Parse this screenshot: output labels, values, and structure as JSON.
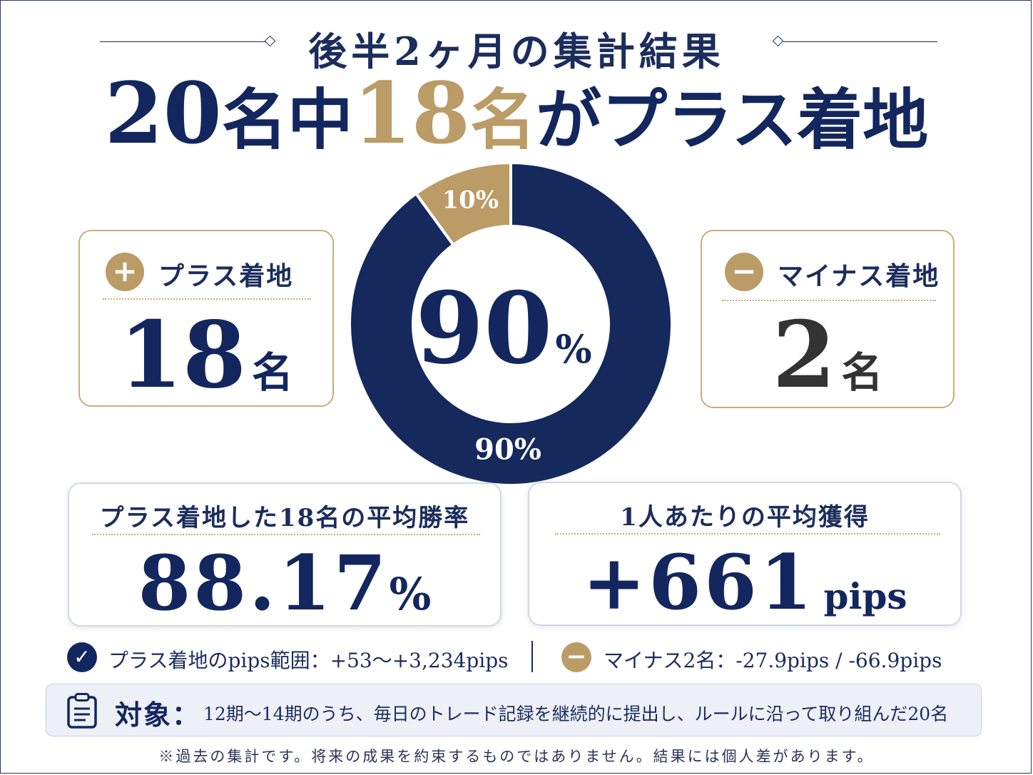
{
  "header": {
    "title": "後半2ヶ月の集計結果"
  },
  "headline": {
    "total": "20",
    "unit1": "名中",
    "plus_count": "18",
    "unit2": "名",
    "suffix": "がプラス着地"
  },
  "plus_card": {
    "icon": "plus-icon",
    "label": "プラス着地",
    "count": "18",
    "unit": "名"
  },
  "minus_card": {
    "icon": "minus-icon",
    "label": "マイナス着地",
    "count": "2",
    "unit": "名"
  },
  "chart_data": {
    "type": "pie",
    "categories": [
      "プラス着地",
      "マイナス着地"
    ],
    "values": [
      90,
      10
    ],
    "slice_labels": [
      "90%",
      "10%"
    ],
    "center_value": "90",
    "center_unit": "%",
    "colors": [
      "#15295c",
      "#bb9b66"
    ]
  },
  "win_rate_card": {
    "title": "プラス着地した18名の平均勝率",
    "value": "88.17",
    "unit": "%"
  },
  "pips_card": {
    "title": "1人あたりの平均獲得",
    "value": "+661",
    "unit": "pips"
  },
  "notes": {
    "plus_range": "プラス着地のpips範囲：+53〜+3,234pips",
    "minus_detail": "マイナス2名：-27.9pips / -66.9pips"
  },
  "target": {
    "icon": "clipboard-icon",
    "label": "対象：",
    "text": "12期〜14期のうち、毎日のトレード記録を継続的に提出し、ルールに沿って取り組んだ20名"
  },
  "disclaimer": "※過去の集計です。将来の成果を約束するものではありません。結果には個人差があります。",
  "colors": {
    "navy": "#15295c",
    "gold": "#bb9b66"
  }
}
